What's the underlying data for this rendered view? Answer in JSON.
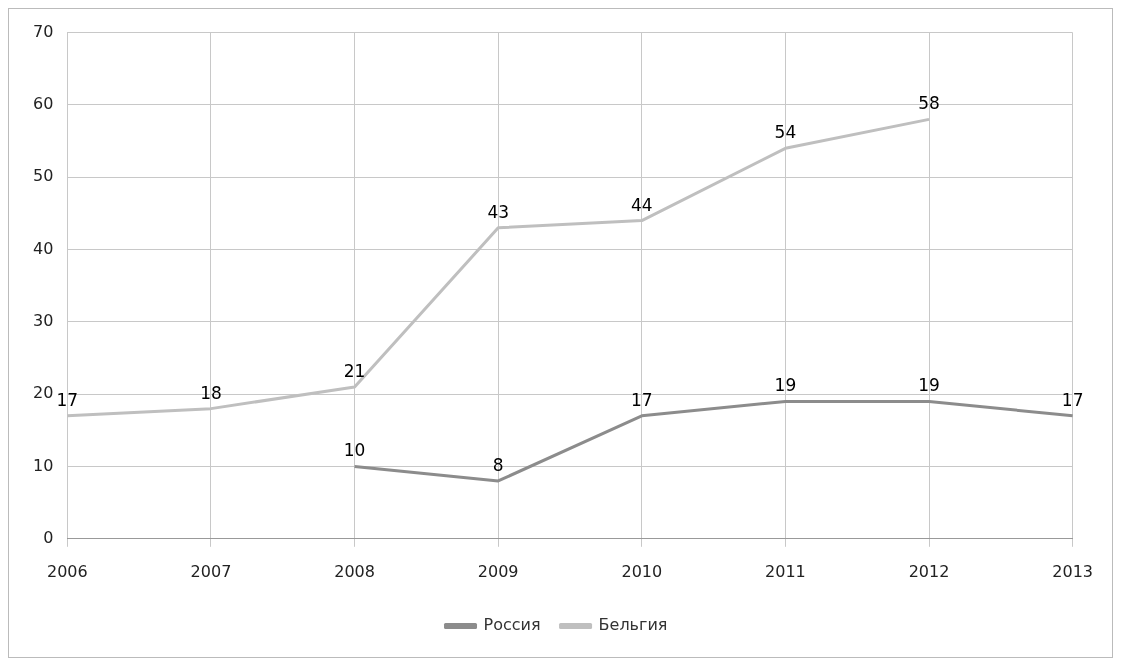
{
  "chart_data": {
    "type": "line",
    "categories": [
      "2006",
      "2007",
      "2008",
      "2009",
      "2010",
      "2011",
      "2012",
      "2013"
    ],
    "series": [
      {
        "name": "Россия",
        "color": "#8c8c8c",
        "values": [
          null,
          null,
          10,
          8,
          17,
          19,
          19,
          17
        ]
      },
      {
        "name": "Бельгия",
        "color": "#bfbfbf",
        "values": [
          17,
          18,
          21,
          43,
          44,
          54,
          58,
          null
        ]
      }
    ],
    "ylim": [
      0,
      70
    ],
    "yticks": [
      0,
      10,
      20,
      30,
      40,
      50,
      60,
      70
    ],
    "grid": true,
    "legend": "bottom",
    "data_labels": true,
    "marker": "none",
    "line_style": "solid"
  }
}
